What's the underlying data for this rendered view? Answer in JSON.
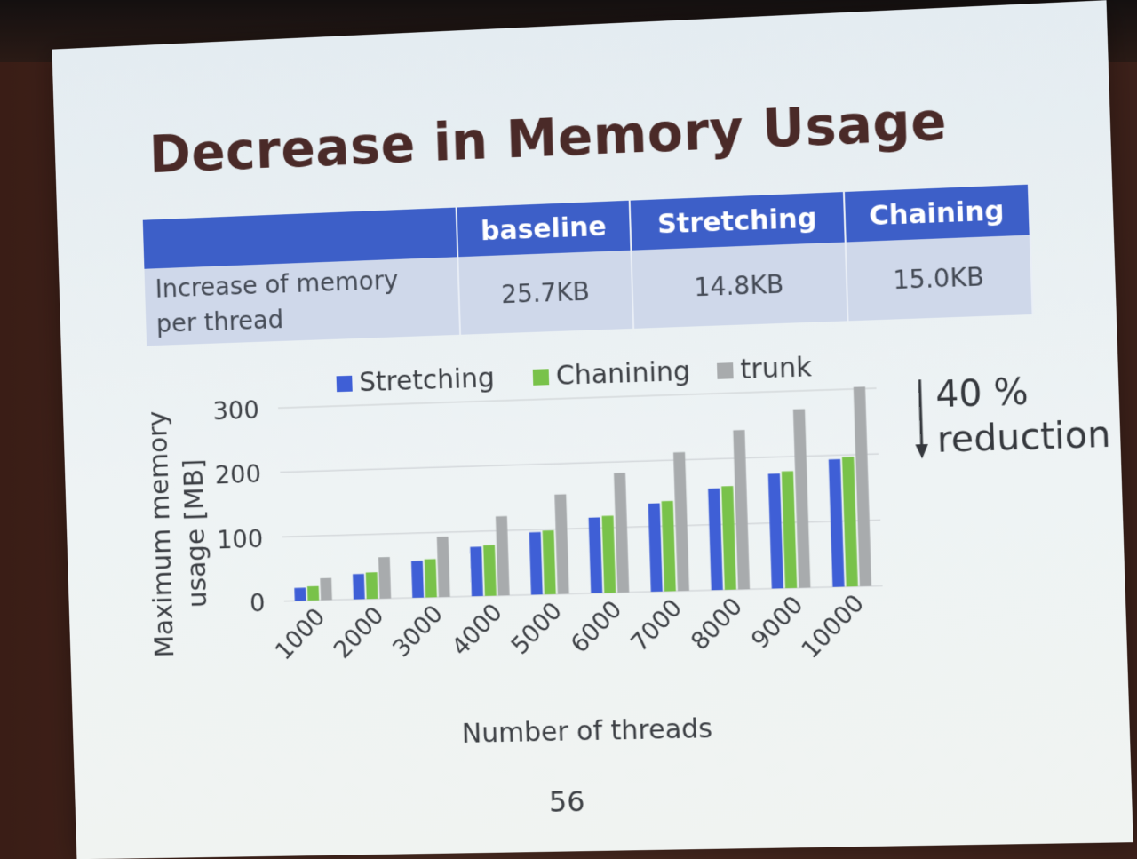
{
  "slide": {
    "title": "Decrease in Memory Usage",
    "page_number": "56",
    "annotation": {
      "line1": "40 %",
      "line2": "reduction"
    }
  },
  "table": {
    "headers": [
      "",
      "baseline",
      "Stretching",
      "Chaining"
    ],
    "row_label": "Increase of memory per thread",
    "row_label_line1": "Increase of memory",
    "row_label_line2": "per thread",
    "values": [
      "25.7KB",
      "14.8KB",
      "15.0KB"
    ]
  },
  "colors": {
    "header_blue": "#3d5fc8",
    "stretching": "#3f5fd6",
    "chaining": "#79c24a",
    "trunk": "#a8abad"
  },
  "chart_data": {
    "type": "bar",
    "title": "",
    "xlabel": "Number of threads",
    "ylabel": "Maximum memory usage [MB]",
    "ylabel_line1": "Maximum memory",
    "ylabel_line2": "usage  [MB]",
    "ylim": [
      0,
      300
    ],
    "yticks": [
      0,
      100,
      200,
      300
    ],
    "grid": true,
    "legend": "top",
    "categories": [
      "1000",
      "2000",
      "3000",
      "4000",
      "5000",
      "6000",
      "7000",
      "8000",
      "9000",
      "10000"
    ],
    "series": [
      {
        "name": "Stretching",
        "color": "#3f5fd6",
        "values": [
          20,
          39,
          57,
          76,
          96,
          116,
          135,
          155,
          175,
          194
        ]
      },
      {
        "name": "Chanining",
        "color": "#79c24a",
        "values": [
          22,
          41,
          59,
          78,
          98,
          118,
          138,
          158,
          178,
          197
        ]
      },
      {
        "name": "trunk",
        "color": "#a8abad",
        "values": [
          34,
          64,
          93,
          122,
          153,
          183,
          212,
          243,
          272,
          303
        ]
      }
    ]
  }
}
